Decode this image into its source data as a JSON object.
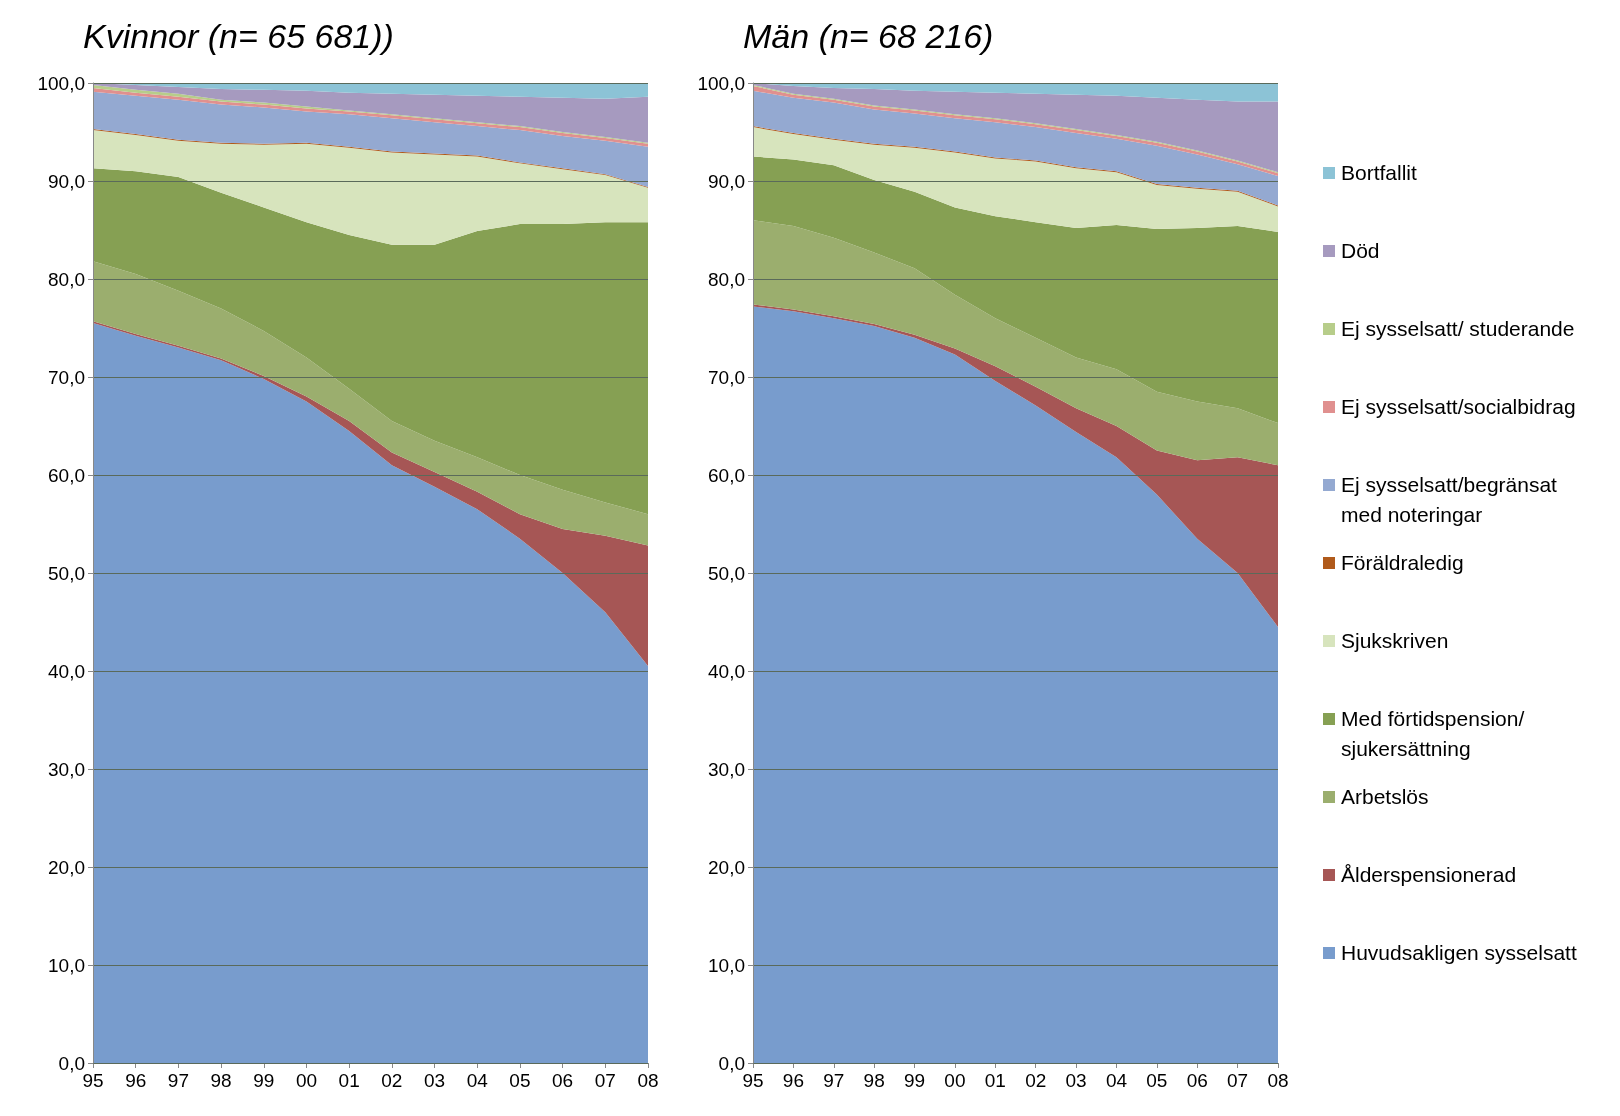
{
  "chart_data": [
    {
      "type": "area",
      "title": "Kvinnor (n= 65 681))",
      "stacked": true,
      "legend": false,
      "grid": "y",
      "categories": [
        "95",
        "96",
        "97",
        "98",
        "99",
        "00",
        "01",
        "02",
        "03",
        "04",
        "05",
        "06",
        "07",
        "08"
      ],
      "ylim": [
        0,
        100
      ],
      "yticks": [
        {
          "value": 0,
          "label": "0,0"
        },
        {
          "value": 10,
          "label": "10,0"
        },
        {
          "value": 20,
          "label": "20,0"
        },
        {
          "value": 30,
          "label": "30,0"
        },
        {
          "value": 40,
          "label": "40,0"
        },
        {
          "value": 50,
          "label": "50,0"
        },
        {
          "value": 60,
          "label": "60,0"
        },
        {
          "value": 70,
          "label": "70,0"
        },
        {
          "value": 80,
          "label": "80,0"
        },
        {
          "value": 90,
          "label": "90,0"
        },
        {
          "value": 100,
          "label": "100,0"
        }
      ],
      "series": [
        {
          "color": "#789ccd",
          "values": [
            75.5,
            74.2,
            73.0,
            71.7,
            69.8,
            67.5,
            64.5,
            61.0,
            58.8,
            56.5,
            53.5,
            50.0,
            46.0,
            40.5
          ]
        },
        {
          "color": "#a65655",
          "values": [
            0.2,
            0.2,
            0.2,
            0.2,
            0.3,
            0.5,
            1.0,
            1.3,
            1.5,
            1.8,
            2.5,
            4.5,
            7.8,
            12.3
          ]
        },
        {
          "color": "#9bae6e",
          "values": [
            6.1,
            6.1,
            5.6,
            5.1,
            4.6,
            4.0,
            3.3,
            3.2,
            3.2,
            3.5,
            4.0,
            4.0,
            3.4,
            3.2
          ]
        },
        {
          "color": "#86a053",
          "values": [
            9.5,
            10.5,
            11.6,
            11.8,
            12.6,
            13.8,
            15.7,
            18.0,
            20.0,
            23.1,
            25.6,
            27.1,
            28.6,
            29.8
          ]
        },
        {
          "color": "#d7e4bd",
          "values": [
            3.9,
            3.7,
            3.7,
            5.0,
            6.4,
            8.0,
            8.9,
            9.4,
            9.2,
            7.6,
            6.2,
            5.6,
            4.8,
            3.5
          ]
        },
        {
          "color": "#b05a1b",
          "values": [
            0.1,
            0.1,
            0.1,
            0.1,
            0.1,
            0.1,
            0.1,
            0.1,
            0.1,
            0.1,
            0.1,
            0.1,
            0.1,
            0.1
          ]
        },
        {
          "color": "#94a9d1",
          "values": [
            3.8,
            3.9,
            4.1,
            3.9,
            3.7,
            3.2,
            3.3,
            3.4,
            3.2,
            3.0,
            3.3,
            3.3,
            3.4,
            4.1
          ]
        },
        {
          "color": "#e0908f",
          "values": [
            0.4,
            0.3,
            0.3,
            0.3,
            0.3,
            0.3,
            0.3,
            0.3,
            0.3,
            0.3,
            0.3,
            0.3,
            0.3,
            0.3
          ]
        },
        {
          "color": "#b7cd8a",
          "values": [
            0.3,
            0.3,
            0.3,
            0.2,
            0.2,
            0.2,
            0.1,
            0.1,
            0.1,
            0.1,
            0.1,
            0.1,
            0.1,
            0.1
          ]
        },
        {
          "color": "#a69abf",
          "values": [
            0.2,
            0.5,
            0.7,
            1.1,
            1.3,
            1.6,
            1.8,
            2.1,
            2.4,
            2.7,
            3.0,
            3.5,
            3.9,
            4.7
          ]
        },
        {
          "color": "#8cc3d6",
          "values": [
            0.1,
            0.3,
            0.5,
            0.7,
            0.8,
            0.9,
            1.1,
            1.2,
            1.3,
            1.4,
            1.5,
            1.6,
            1.7,
            1.5
          ]
        }
      ]
    },
    {
      "type": "area",
      "title": "Män (n= 68 216)",
      "stacked": true,
      "legend": "right",
      "grid": "y",
      "categories": [
        "95",
        "96",
        "97",
        "98",
        "99",
        "00",
        "01",
        "02",
        "03",
        "04",
        "05",
        "06",
        "07",
        "08"
      ],
      "ylim": [
        0,
        100
      ],
      "yticks": [
        {
          "value": 0,
          "label": "0,0"
        },
        {
          "value": 10,
          "label": "10,0"
        },
        {
          "value": 20,
          "label": "20,0"
        },
        {
          "value": 30,
          "label": "30,0"
        },
        {
          "value": 40,
          "label": "40,0"
        },
        {
          "value": 50,
          "label": "50,0"
        },
        {
          "value": 60,
          "label": "60,0"
        },
        {
          "value": 70,
          "label": "70,0"
        },
        {
          "value": 80,
          "label": "80,0"
        },
        {
          "value": 90,
          "label": "90,0"
        },
        {
          "value": 100,
          "label": "100,0"
        }
      ],
      "series": [
        {
          "name": "Huvudsakligen sysselsatt",
          "color": "#789ccd",
          "values": [
            77.2,
            76.7,
            76.0,
            75.2,
            74.0,
            72.3,
            69.6,
            67.1,
            64.4,
            61.8,
            58.0,
            53.5,
            50.0,
            44.5
          ]
        },
        {
          "name": "Ålderspensionerad",
          "color": "#a65655",
          "values": [
            0.2,
            0.2,
            0.2,
            0.2,
            0.3,
            0.6,
            1.5,
            1.9,
            2.4,
            3.2,
            4.5,
            8.0,
            11.8,
            16.5
          ]
        },
        {
          "name": "Arbetslös",
          "color": "#9bae6e",
          "values": [
            8.6,
            8.5,
            8.0,
            7.3,
            6.8,
            5.5,
            4.9,
            5.0,
            5.2,
            5.8,
            6.0,
            6.0,
            5.0,
            4.3
          ]
        },
        {
          "name": "Med förtidspension/ sjukersättning",
          "color": "#86a053",
          "values": [
            6.5,
            6.8,
            7.4,
            7.4,
            7.8,
            8.9,
            10.4,
            11.8,
            13.2,
            14.7,
            16.6,
            17.7,
            18.6,
            19.5
          ]
        },
        {
          "name": "Sjukskriven",
          "color": "#d7e4bd",
          "values": [
            3.0,
            2.6,
            2.6,
            3.6,
            4.5,
            5.6,
            5.9,
            6.2,
            6.1,
            5.4,
            4.5,
            4.0,
            3.5,
            2.6
          ]
        },
        {
          "name": "Föräldraledig",
          "color": "#b05a1b",
          "values": [
            0.1,
            0.1,
            0.1,
            0.1,
            0.1,
            0.1,
            0.1,
            0.1,
            0.1,
            0.1,
            0.1,
            0.1,
            0.1,
            0.1
          ]
        },
        {
          "name": "Ej sysselsatt/begränsat med noteringar",
          "color": "#94a9d1",
          "values": [
            3.6,
            3.6,
            3.7,
            3.5,
            3.4,
            3.4,
            3.6,
            3.4,
            3.5,
            3.3,
            3.9,
            3.4,
            2.7,
            3.0
          ]
        },
        {
          "name": "Ej sysselsatt/socialbidrag",
          "color": "#e0908f",
          "values": [
            0.5,
            0.3,
            0.3,
            0.3,
            0.3,
            0.3,
            0.3,
            0.3,
            0.3,
            0.3,
            0.3,
            0.3,
            0.3,
            0.3
          ]
        },
        {
          "name": "Ej sysselsatt/ studerande",
          "color": "#b7cd8a",
          "values": [
            0.1,
            0.1,
            0.1,
            0.1,
            0.1,
            0.1,
            0.1,
            0.1,
            0.1,
            0.1,
            0.1,
            0.1,
            0.1,
            0.1
          ]
        },
        {
          "name": "Död",
          "color": "#a69abf",
          "values": [
            0.2,
            0.8,
            1.1,
            1.7,
            1.9,
            2.3,
            2.6,
            3.0,
            3.5,
            4.0,
            4.5,
            5.2,
            6.0,
            7.2
          ]
        },
        {
          "name": "Bortfallit",
          "color": "#8cc3d6",
          "values": [
            0.1,
            0.4,
            0.6,
            0.7,
            0.9,
            1.0,
            1.1,
            1.2,
            1.3,
            1.4,
            1.6,
            1.8,
            2.0,
            2.0
          ]
        }
      ]
    }
  ]
}
